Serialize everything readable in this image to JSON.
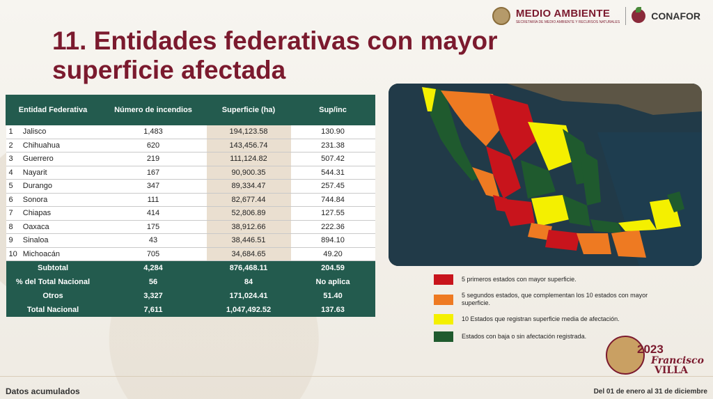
{
  "header": {
    "logo_left": "MEDIO AMBIENTE",
    "logo_left_sub": "SECRETARÍA DE MEDIO AMBIENTE Y RECURSOS NATURALES",
    "logo_right": "CONAFOR"
  },
  "title": "11. Entidades federativas con mayor superficie afectada",
  "table": {
    "headers": [
      "Entidad Federativa",
      "Número de incendios",
      "Superficie (ha)",
      "Sup/inc"
    ],
    "rows": [
      {
        "n": "1",
        "entidad": "Jalisco",
        "incendios": "1,483",
        "superficie": "194,123.58",
        "supinc": "130.90"
      },
      {
        "n": "2",
        "entidad": "Chihuahua",
        "incendios": "620",
        "superficie": "143,456.74",
        "supinc": "231.38"
      },
      {
        "n": "3",
        "entidad": "Guerrero",
        "incendios": "219",
        "superficie": "111,124.82",
        "supinc": "507.42"
      },
      {
        "n": "4",
        "entidad": "Nayarit",
        "incendios": "167",
        "superficie": "90,900.35",
        "supinc": "544.31"
      },
      {
        "n": "5",
        "entidad": "Durango",
        "incendios": "347",
        "superficie": "89,334.47",
        "supinc": "257.45"
      },
      {
        "n": "6",
        "entidad": "Sonora",
        "incendios": "111",
        "superficie": "82,677.44",
        "supinc": "744.84"
      },
      {
        "n": "7",
        "entidad": "Chiapas",
        "incendios": "414",
        "superficie": "52,806.89",
        "supinc": "127.55"
      },
      {
        "n": "8",
        "entidad": "Oaxaca",
        "incendios": "175",
        "superficie": "38,912.66",
        "supinc": "222.36"
      },
      {
        "n": "9",
        "entidad": "Sinaloa",
        "incendios": "43",
        "superficie": "38,446.51",
        "supinc": "894.10"
      },
      {
        "n": "10",
        "entidad": "Michoacán",
        "incendios": "705",
        "superficie": "34,684.65",
        "supinc": "49.20"
      }
    ],
    "footer": [
      {
        "label": "Subtotal",
        "incendios": "4,284",
        "superficie": "876,468.11",
        "supinc": "204.59"
      },
      {
        "label": "% del Total Nacional",
        "incendios": "56",
        "superficie": "84",
        "supinc": "No aplica"
      },
      {
        "label": "Otros",
        "incendios": "3,327",
        "superficie": "171,024.41",
        "supinc": "51.40"
      },
      {
        "label": "Total Nacional",
        "incendios": "7,611",
        "superficie": "1,047,492.52",
        "supinc": "137.63"
      }
    ]
  },
  "legend": [
    {
      "color": "#c8141c",
      "text": "5 primeros estados con mayor superficie."
    },
    {
      "color": "#ee7a22",
      "text": "5 segundos estados, que complementan los 10 estados con mayor superficie."
    },
    {
      "color": "#f4f000",
      "text": "10 Estados que registran superficie media de afectación."
    },
    {
      "color": "#1f5a2e",
      "text": "Estados con baja o sin afectación registrada."
    }
  ],
  "footer": {
    "left": "Datos acumulados",
    "right": "Del 01 de enero al 31 de diciembre"
  },
  "badge": {
    "year": "2023",
    "name_1": "Francisco",
    "name_2": "VILLA"
  }
}
